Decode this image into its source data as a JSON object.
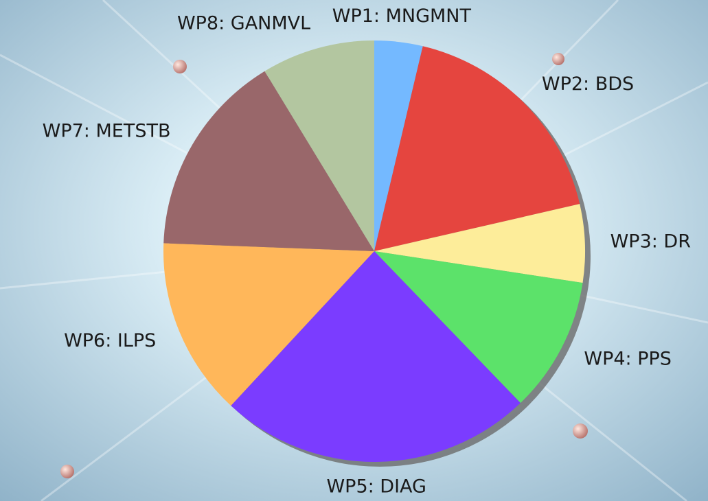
{
  "chart_data": {
    "type": "pie",
    "categories": [
      "WP1: MNGMNT",
      "WP2: BDS",
      "WP3: DR",
      "WP4: PPS",
      "WP5: DIAG",
      "WP6: ILPS",
      "WP7: METSTB",
      "WP8: GANMVL"
    ],
    "values": [
      3.7,
      17.7,
      6,
      10.4,
      24.1,
      13.7,
      15.7,
      8.7
    ],
    "colors": [
      "#74b9ff",
      "#e5453f",
      "#fded9a",
      "#5ce26a",
      "#7b3cff",
      "#ffb75a",
      "#99676a",
      "#b3c6a0"
    ]
  }
}
